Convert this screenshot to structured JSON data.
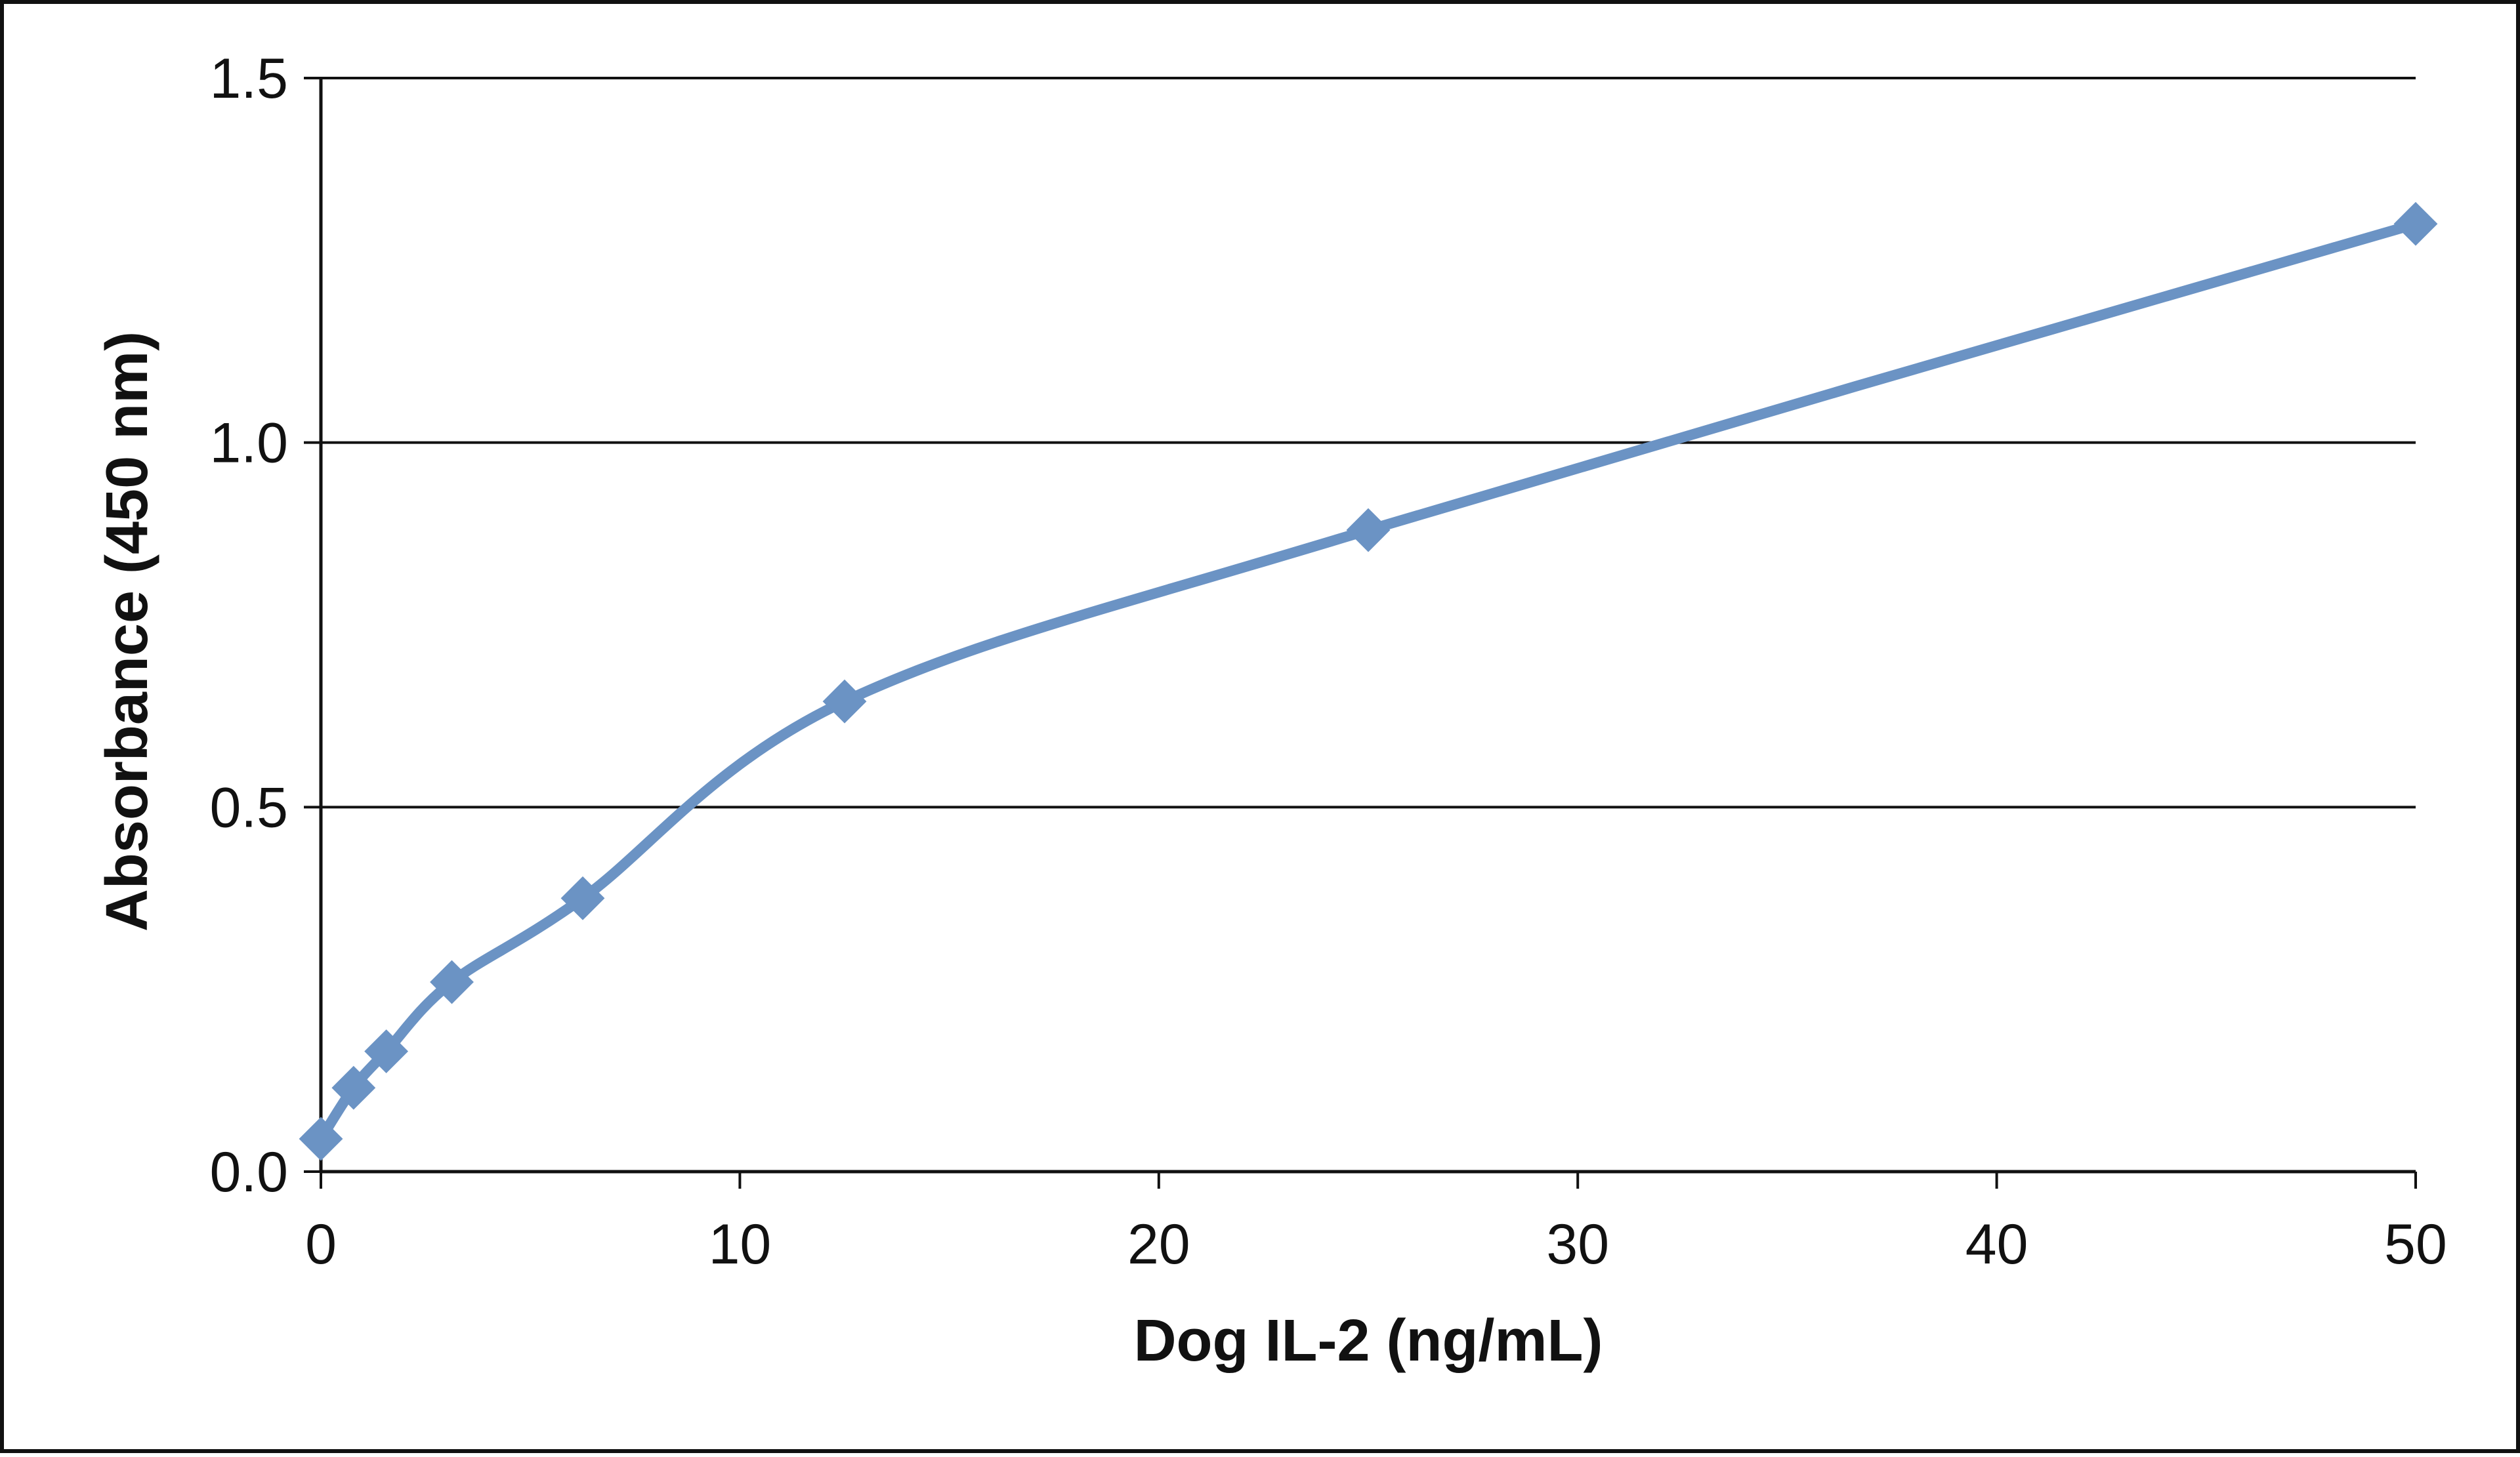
{
  "chart_data": {
    "type": "line",
    "title": "",
    "xlabel": "Dog IL-2 (ng/mL)",
    "ylabel": "Absorbance  (450 nm)",
    "xlim": [
      0,
      50
    ],
    "ylim": [
      0,
      1.5
    ],
    "x_ticks": [
      0,
      10,
      20,
      30,
      40,
      50
    ],
    "x_tick_labels": [
      "0",
      "10",
      "20",
      "30",
      "40",
      "50"
    ],
    "y_ticks": [
      0,
      0.5,
      1.0,
      1.5
    ],
    "y_tick_labels": [
      "0.0",
      "0.5",
      "1.0",
      "1.5"
    ],
    "grid": "horizontal",
    "legend": "none",
    "series": [
      {
        "name": "Dog IL-2",
        "color": "#6b93c4",
        "marker": "diamond",
        "smooth": true,
        "x": [
          0,
          0.78,
          1.56,
          3.125,
          6.25,
          12.5,
          25,
          50
        ],
        "y": [
          0.045,
          0.115,
          0.165,
          0.26,
          0.375,
          0.645,
          0.88,
          1.3
        ]
      }
    ]
  }
}
